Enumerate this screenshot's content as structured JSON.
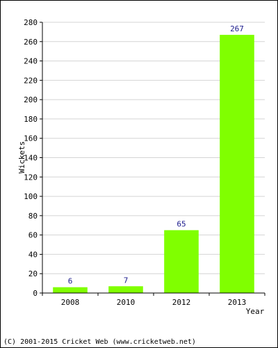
{
  "chart_data": {
    "type": "bar",
    "categories": [
      "2008",
      "2010",
      "2012",
      "2013"
    ],
    "values": [
      6,
      7,
      65,
      267
    ],
    "data_labels": [
      "6",
      "7",
      "65",
      "267"
    ],
    "title": "",
    "xlabel": "Year",
    "ylabel": "Wickets",
    "ylim": [
      0,
      280
    ],
    "yticks": [
      "0",
      "20",
      "40",
      "60",
      "80",
      "100",
      "120",
      "140",
      "160",
      "180",
      "200",
      "220",
      "240",
      "260",
      "280"
    ],
    "grid": true,
    "legend": "none",
    "bar_color": "#80ff00",
    "label_color": "#1a1a8c"
  },
  "footer": "(C) 2001-2015 Cricket Web (www.cricketweb.net)"
}
